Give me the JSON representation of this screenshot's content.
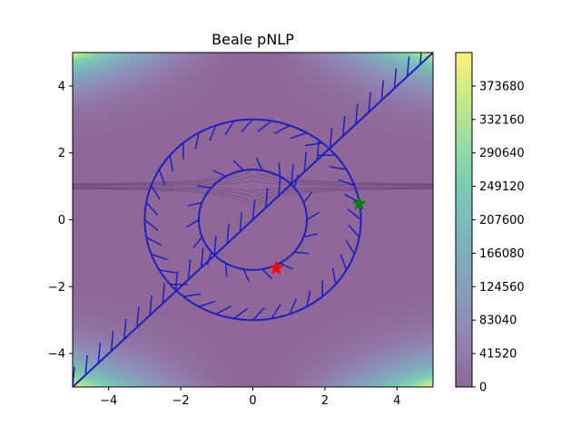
{
  "chart_data": {
    "type": "heatmap",
    "title": "Beale pNLP",
    "xlabel": "",
    "ylabel": "",
    "xlim": [
      -5,
      5
    ],
    "ylim": [
      -5,
      5
    ],
    "x_ticks": [
      -4,
      -2,
      0,
      2,
      4
    ],
    "y_ticks": [
      -4,
      -2,
      0,
      2,
      4
    ],
    "x_tick_labels": [
      "−4",
      "−2",
      "0",
      "2",
      "4"
    ],
    "y_tick_labels": [
      "−4",
      "−2",
      "0",
      "2",
      "4"
    ],
    "colorbar": {
      "min": 0,
      "max": 415200,
      "ticks": [
        0,
        41520,
        83040,
        124560,
        166080,
        207600,
        249120,
        290640,
        332160,
        373680
      ],
      "tick_labels": [
        "0",
        "41520",
        "83040",
        "124560",
        "166080",
        "207600",
        "249120",
        "290640",
        "332160",
        "373680"
      ],
      "colormap": "viridis",
      "alpha": 0.6
    },
    "constraints": [
      {
        "kind": "circle",
        "center": [
          0,
          0
        ],
        "radius": 3,
        "hatch_side": "inside",
        "color": "#1f1fbf"
      },
      {
        "kind": "circle",
        "center": [
          0,
          0
        ],
        "radius": 1.5,
        "hatch_side": "outside",
        "color": "#1f1fbf"
      },
      {
        "kind": "line",
        "from": [
          -5,
          -5
        ],
        "to": [
          5,
          5
        ],
        "hatch_side": "upper-left",
        "color": "#1f1fbf"
      }
    ],
    "markers": [
      {
        "label": "red star",
        "x": 0.65,
        "y": -1.45,
        "color": "#ff0000",
        "shape": "star"
      },
      {
        "label": "green star",
        "x": 2.95,
        "y": 0.48,
        "color": "#008000",
        "shape": "star"
      }
    ],
    "grid": false
  }
}
